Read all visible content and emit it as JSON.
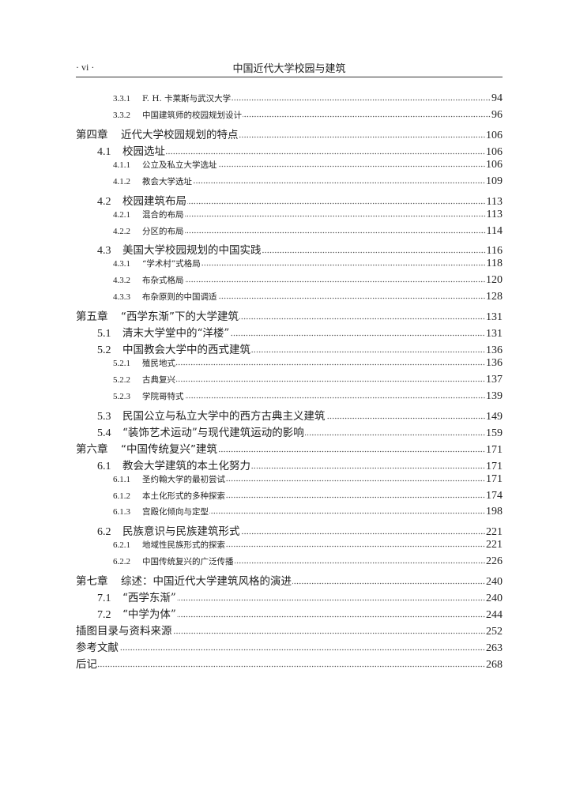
{
  "header": {
    "page_number": "· vi ·",
    "running_title": "中国近代大学校园与建筑"
  },
  "toc": [
    {
      "level": 3,
      "number": "3.3.1",
      "title": "F. H. 卡莱斯与武汉大学",
      "page": "94"
    },
    {
      "level": 3,
      "number": "3.3.2",
      "title": "中国建筑师的校园规划设计",
      "page": "96"
    },
    {
      "level": 1,
      "number": "第四章",
      "title": "近代大学校园规划的特点",
      "page": "106"
    },
    {
      "level": 2,
      "number": "4.1",
      "title": "校园选址",
      "page": "106"
    },
    {
      "level": 3,
      "number": "4.1.1",
      "title": "公立及私立大学选址",
      "page": "106"
    },
    {
      "level": 3,
      "number": "4.1.2",
      "title": "教会大学选址",
      "page": "109"
    },
    {
      "level": 2,
      "number": "4.2",
      "title": "校园建筑布局",
      "page": "113"
    },
    {
      "level": 3,
      "number": "4.2.1",
      "title": "混合的布局",
      "page": "113"
    },
    {
      "level": 3,
      "number": "4.2.2",
      "title": "分区的布局",
      "page": "114"
    },
    {
      "level": 2,
      "number": "4.3",
      "title": "美国大学校园规划的中国实践",
      "page": "116"
    },
    {
      "level": 3,
      "number": "4.3.1",
      "title": "“学术村”式格局",
      "page": "118"
    },
    {
      "level": 3,
      "number": "4.3.2",
      "title": "布杂式格局",
      "page": "120"
    },
    {
      "level": 3,
      "number": "4.3.3",
      "title": "布杂原则的中国调适",
      "page": "128"
    },
    {
      "level": 1,
      "number": "第五章",
      "title": "“西学东渐”下的大学建筑",
      "page": "131"
    },
    {
      "level": 2,
      "number": "5.1",
      "title": "清末大学堂中的“洋楼”",
      "page": "131"
    },
    {
      "level": 2,
      "number": "5.2",
      "title": "中国教会大学中的西式建筑",
      "page": "136"
    },
    {
      "level": 3,
      "number": "5.2.1",
      "title": "殖民地式",
      "page": "136"
    },
    {
      "level": 3,
      "number": "5.2.2",
      "title": "古典复兴",
      "page": "137"
    },
    {
      "level": 3,
      "number": "5.2.3",
      "title": "学院哥特式",
      "page": "139"
    },
    {
      "level": 2,
      "number": "5.3",
      "title": "民国公立与私立大学中的西方古典主义建筑",
      "page": "149"
    },
    {
      "level": 2,
      "number": "5.4",
      "title": "“装饰艺术运动”与现代建筑运动的影响",
      "page": "159"
    },
    {
      "level": 1,
      "number": "第六章",
      "title": "“中国传统复兴”建筑",
      "page": "171"
    },
    {
      "level": 2,
      "number": "6.1",
      "title": "教会大学建筑的本土化努力",
      "page": "171"
    },
    {
      "level": 3,
      "number": "6.1.1",
      "title": "圣约翰大学的最初尝试",
      "page": "171"
    },
    {
      "level": 3,
      "number": "6.1.2",
      "title": "本土化形式的多种探索",
      "page": "174"
    },
    {
      "level": 3,
      "number": "6.1.3",
      "title": "宫殿化倾向与定型",
      "page": "198"
    },
    {
      "level": 2,
      "number": "6.2",
      "title": "民族意识与民族建筑形式",
      "page": "221"
    },
    {
      "level": 3,
      "number": "6.2.1",
      "title": "地域性民族形式的探索",
      "page": "221"
    },
    {
      "level": 3,
      "number": "6.2.2",
      "title": "中国传统复兴的广泛传播",
      "page": "226"
    },
    {
      "level": 1,
      "number": "第七章",
      "title": "综述：中国近代大学建筑风格的演进",
      "page": "240"
    },
    {
      "level": 2,
      "number": "7.1",
      "title": "“西学东渐”",
      "page": "240"
    },
    {
      "level": 2,
      "number": "7.2",
      "title": "“中学为体”",
      "page": "244"
    },
    {
      "level": 1,
      "number": "",
      "title": "插图目录与资料来源",
      "page": "252"
    },
    {
      "level": 1,
      "number": "",
      "title": "参考文献",
      "page": "263"
    },
    {
      "level": 1,
      "number": "",
      "title": "后记",
      "page": "268"
    }
  ]
}
